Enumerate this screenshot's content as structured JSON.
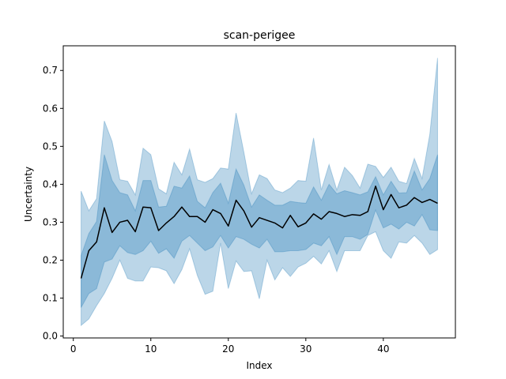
{
  "chart_data": {
    "type": "line",
    "title": "scan-perigee",
    "xlabel": "Index",
    "ylabel": "Uncertainty",
    "xlim": [
      -1.3,
      49.3
    ],
    "ylim": [
      -0.005,
      0.765
    ],
    "xticks": [
      0,
      10,
      20,
      30,
      40
    ],
    "yticks": [
      0.0,
      0.1,
      0.2,
      0.3,
      0.4,
      0.5,
      0.6,
      0.7
    ],
    "ytick_labels": [
      "0.0",
      "0.1",
      "0.2",
      "0.3",
      "0.4",
      "0.5",
      "0.6",
      "0.7"
    ],
    "grid": false,
    "colors": {
      "line": "#000000",
      "band": "#1f77b4"
    },
    "x": [
      1,
      2,
      3,
      4,
      5,
      6,
      7,
      8,
      9,
      10,
      11,
      12,
      13,
      14,
      15,
      16,
      17,
      18,
      19,
      20,
      21,
      22,
      23,
      24,
      25,
      26,
      27,
      28,
      29,
      30,
      31,
      32,
      33,
      34,
      35,
      36,
      37,
      38,
      39,
      40,
      41,
      42,
      43,
      44,
      45,
      46,
      47
    ],
    "series": [
      {
        "role": "mean",
        "values": [
          0.152,
          0.225,
          0.248,
          0.338,
          0.273,
          0.3,
          0.305,
          0.275,
          0.34,
          0.338,
          0.278,
          0.298,
          0.315,
          0.34,
          0.315,
          0.315,
          0.3,
          0.333,
          0.323,
          0.29,
          0.358,
          0.33,
          0.287,
          0.312,
          0.305,
          0.298,
          0.285,
          0.318,
          0.288,
          0.298,
          0.322,
          0.308,
          0.328,
          0.323,
          0.315,
          0.32,
          0.318,
          0.328,
          0.395,
          0.333,
          0.373,
          0.338,
          0.345,
          0.365,
          0.352,
          0.36,
          0.35
        ]
      },
      {
        "role": "outer-lower",
        "values": [
          0.028,
          0.045,
          0.08,
          0.112,
          0.152,
          0.2,
          0.152,
          0.145,
          0.145,
          0.182,
          0.18,
          0.172,
          0.138,
          0.175,
          0.23,
          0.16,
          0.11,
          0.118,
          0.245,
          0.125,
          0.198,
          0.17,
          0.172,
          0.098,
          0.2,
          0.148,
          0.18,
          0.157,
          0.182,
          0.192,
          0.21,
          0.19,
          0.225,
          0.17,
          0.225,
          0.225,
          0.225,
          0.265,
          0.275,
          0.225,
          0.205,
          0.248,
          0.245,
          0.265,
          0.245,
          0.215,
          0.228
        ]
      },
      {
        "role": "outer-upper",
        "values": [
          0.382,
          0.33,
          0.362,
          0.567,
          0.513,
          0.412,
          0.408,
          0.372,
          0.495,
          0.478,
          0.388,
          0.375,
          0.458,
          0.425,
          0.493,
          0.412,
          0.405,
          0.415,
          0.443,
          0.44,
          0.588,
          0.485,
          0.375,
          0.425,
          0.415,
          0.385,
          0.378,
          0.39,
          0.41,
          0.408,
          0.522,
          0.385,
          0.452,
          0.385,
          0.445,
          0.423,
          0.39,
          0.453,
          0.447,
          0.418,
          0.445,
          0.408,
          0.402,
          0.468,
          0.415,
          0.532,
          0.733
        ]
      },
      {
        "role": "inner-lower",
        "values": [
          0.075,
          0.112,
          0.125,
          0.195,
          0.203,
          0.238,
          0.22,
          0.215,
          0.225,
          0.25,
          0.218,
          0.23,
          0.205,
          0.25,
          0.265,
          0.245,
          0.225,
          0.235,
          0.265,
          0.232,
          0.262,
          0.255,
          0.242,
          0.232,
          0.255,
          0.222,
          0.222,
          0.225,
          0.225,
          0.228,
          0.245,
          0.238,
          0.262,
          0.215,
          0.262,
          0.262,
          0.255,
          0.268,
          0.332,
          0.285,
          0.295,
          0.282,
          0.3,
          0.29,
          0.32,
          0.28,
          0.278
        ]
      },
      {
        "role": "inner-upper",
        "values": [
          0.212,
          0.27,
          0.302,
          0.478,
          0.41,
          0.378,
          0.372,
          0.33,
          0.41,
          0.41,
          0.34,
          0.342,
          0.395,
          0.39,
          0.422,
          0.355,
          0.338,
          0.378,
          0.403,
          0.35,
          0.44,
          0.398,
          0.34,
          0.372,
          0.358,
          0.345,
          0.345,
          0.355,
          0.352,
          0.35,
          0.393,
          0.358,
          0.4,
          0.375,
          0.383,
          0.378,
          0.372,
          0.38,
          0.42,
          0.372,
          0.408,
          0.377,
          0.378,
          0.435,
          0.385,
          0.415,
          0.478
        ]
      }
    ]
  }
}
